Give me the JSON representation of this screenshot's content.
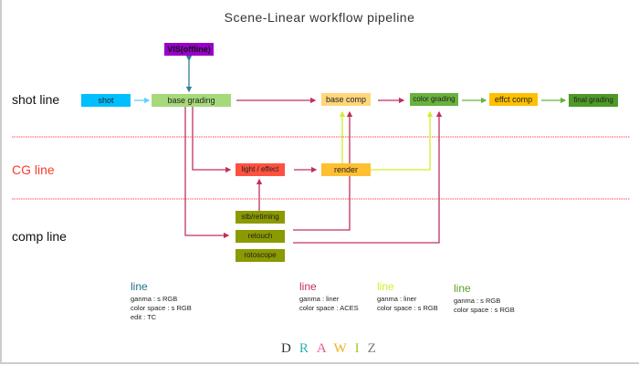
{
  "title": "Scene-Linear workflow pipeline",
  "lanes": {
    "shot": "shot line",
    "cg": "CG line",
    "comp": "comp line"
  },
  "colors": {
    "lane_cg": "#ff3b2f",
    "separator": "#ff4d4d",
    "teal_link": "#2e7d9a",
    "crimson_link": "#c0305f",
    "yellow_link": "#d4ee2a",
    "green_link": "#6ab23e",
    "blue_link": "#5fd0ff"
  },
  "nodes": {
    "vis": {
      "label": "VIS(offline)",
      "color": "#9900cc"
    },
    "shot": {
      "label": "shot",
      "color": "#00bfff"
    },
    "base_grading": {
      "label": "base grading",
      "color": "#a6d97a"
    },
    "base_comp": {
      "label": "base comp",
      "color": "#ffd77a"
    },
    "color_grading": {
      "label": "color grading",
      "color": "#6ab23e"
    },
    "effct_comp": {
      "label": "effct comp",
      "color": "#ffc000"
    },
    "final_grading": {
      "label": "final grading",
      "color": "#4e9a26"
    },
    "light_effect": {
      "label": "light / effect",
      "color": "#ff5040"
    },
    "render": {
      "label": "render",
      "color": "#ffbf33"
    },
    "stb": {
      "label": "stb/retiming",
      "color": "#8a9a00"
    },
    "retouch": {
      "label": "retouch",
      "color": "#8a9a00"
    },
    "rotoscope": {
      "label": "rotoscope",
      "color": "#8a9a00"
    }
  },
  "legend": [
    {
      "title": "line",
      "color": "#1d6e8f",
      "lines": [
        "ganma : s RGB",
        "color space : s RGB",
        "edit : TC"
      ]
    },
    {
      "title": "line",
      "color": "#c0305f",
      "lines": [
        "ganma : liner",
        "color space : ACES"
      ]
    },
    {
      "title": "line",
      "color": "#d4ee2a",
      "lines": [
        "ganma : liner",
        "color space : s RGB"
      ]
    },
    {
      "title": "line",
      "color": "#5a9e2a",
      "lines": [
        "ganma : s RGB",
        "color space : s RGB"
      ]
    }
  ],
  "logo": {
    "text": "DRAWIZ",
    "letters": [
      "D",
      "R",
      "A",
      "W",
      "I",
      "Z"
    ],
    "colors": [
      "#333333",
      "#2bb3b3",
      "#e85a8a",
      "#f0b020",
      "#9ccc30",
      "#777777"
    ]
  }
}
